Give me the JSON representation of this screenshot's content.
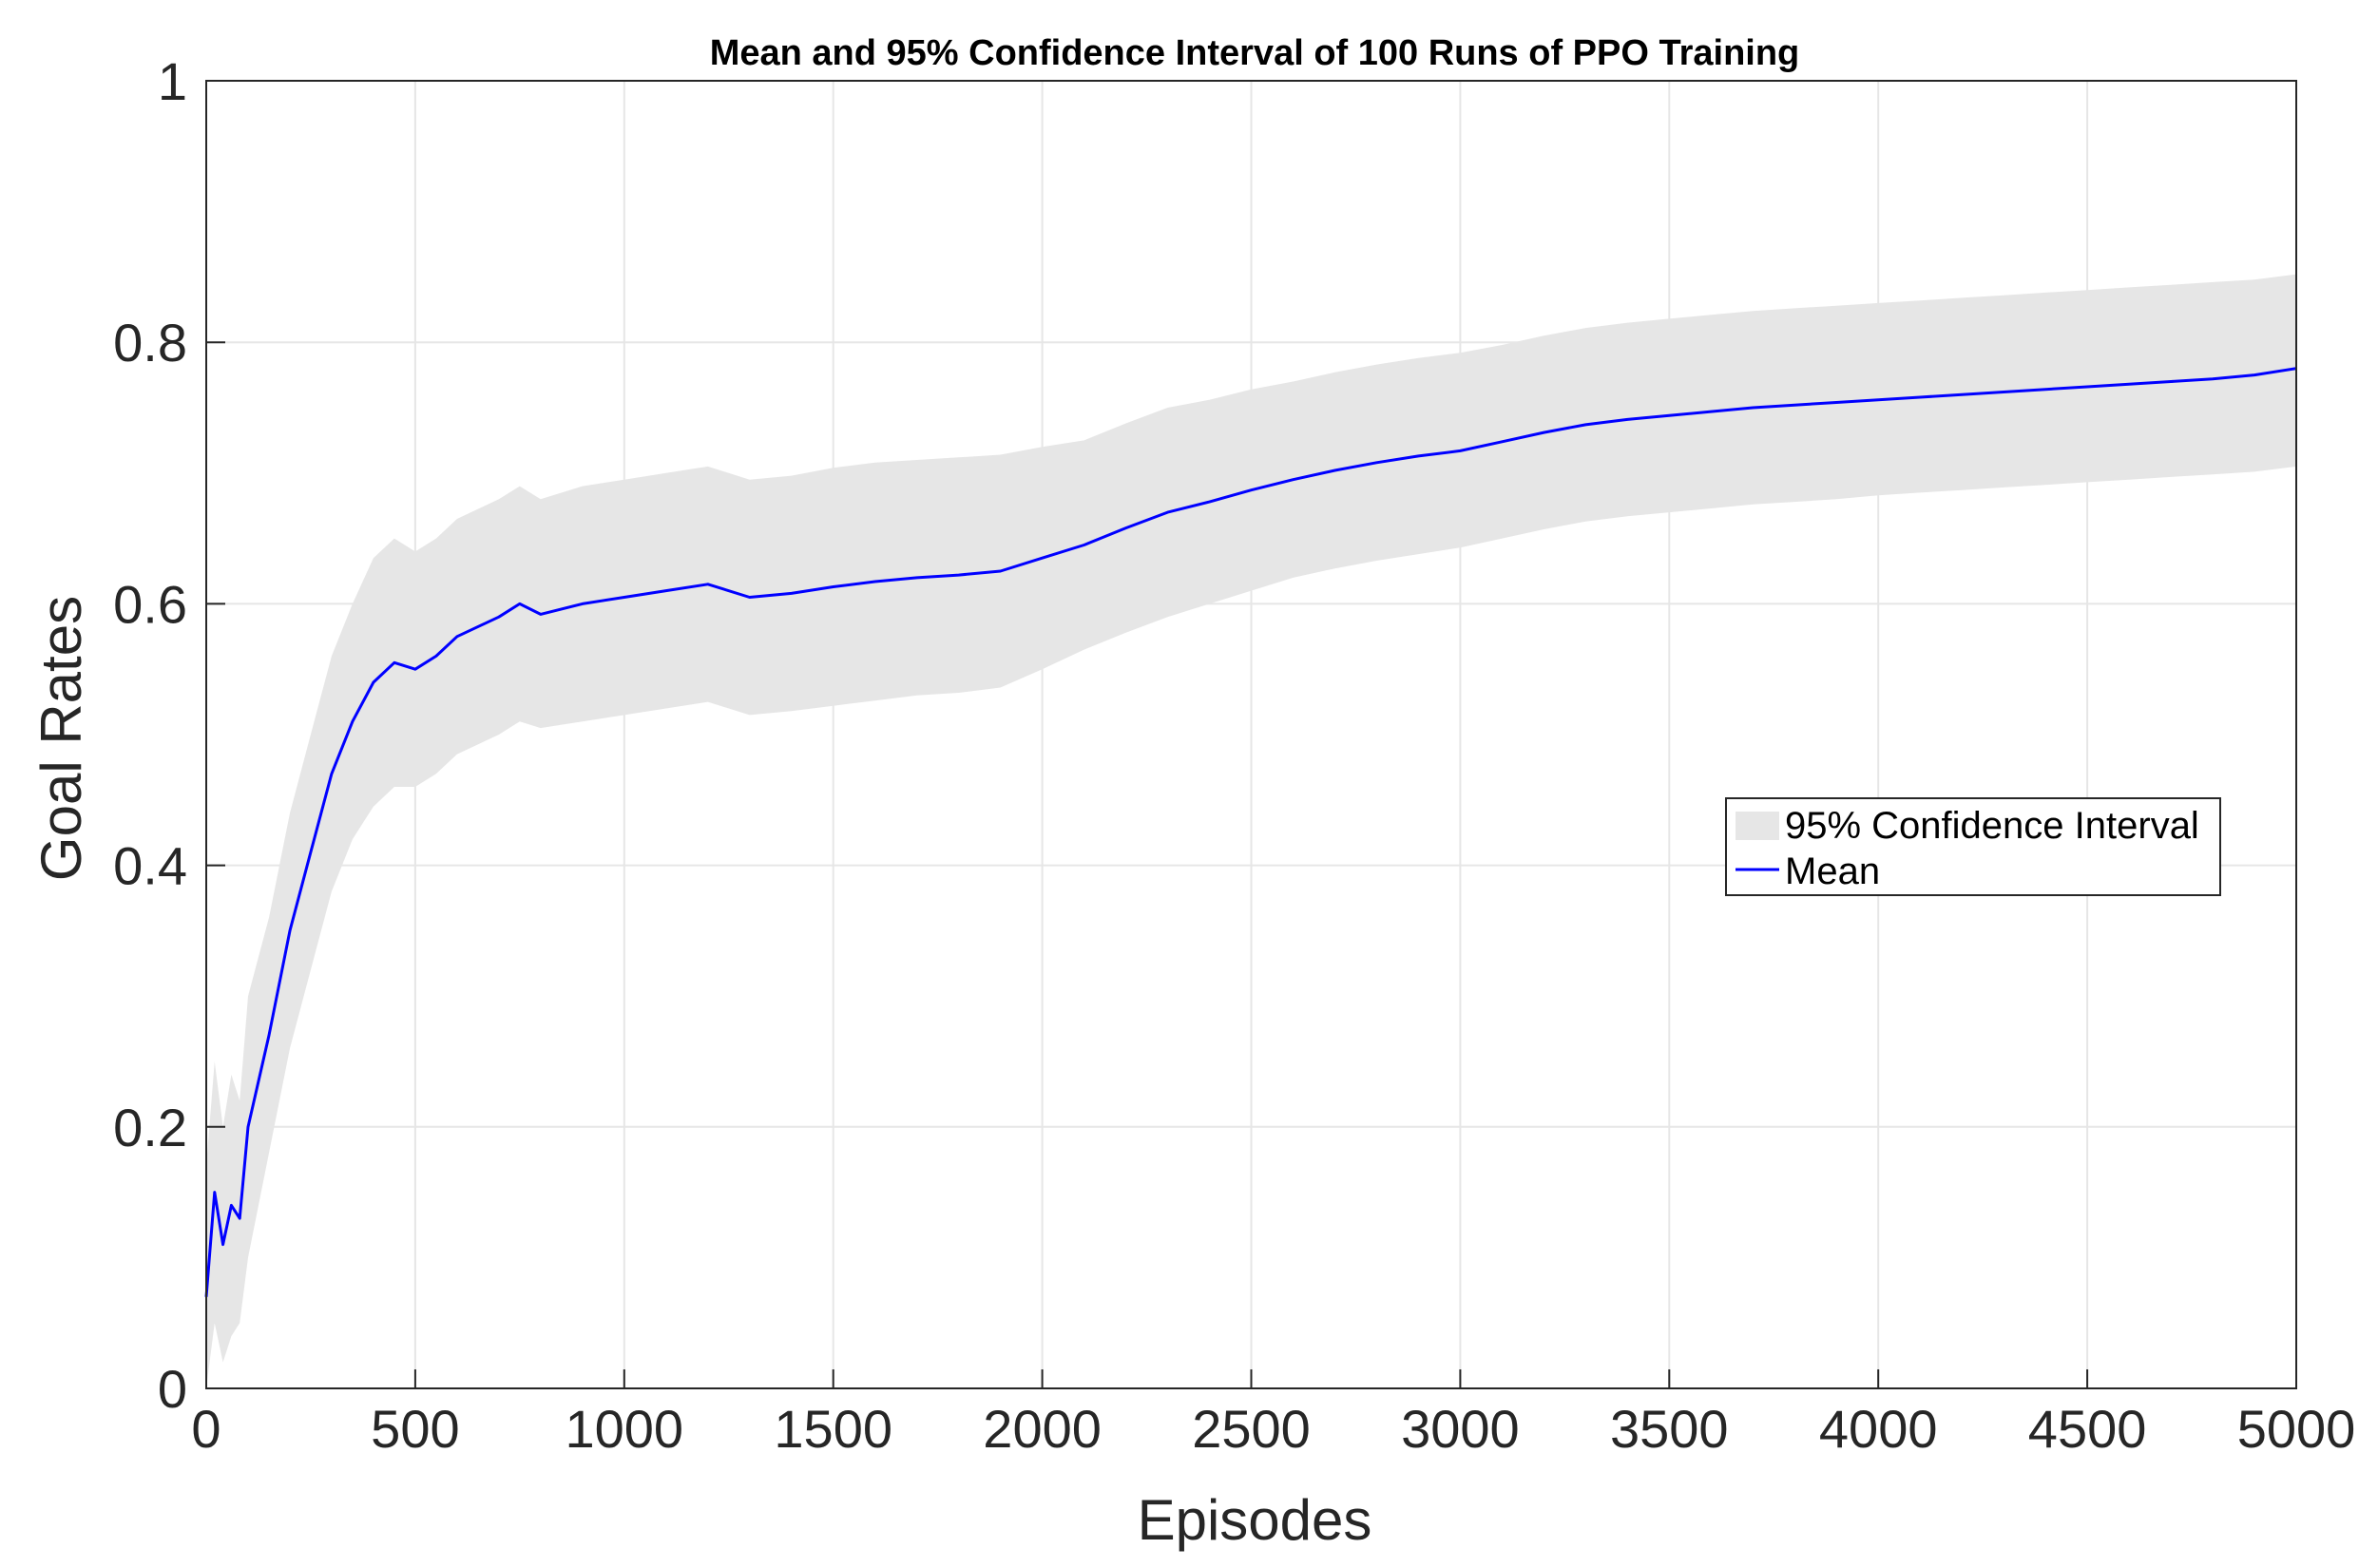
{
  "chart_data": {
    "type": "line",
    "title": "Mean and 95% Confidence Interval of 100 Runs of PPO Training",
    "xlabel": "Episodes",
    "ylabel": "Goal Rates",
    "xlim": [
      0,
      5000
    ],
    "ylim": [
      0,
      1
    ],
    "xticks": [
      0,
      500,
      1000,
      1500,
      2000,
      2500,
      3000,
      3500,
      4000,
      4500,
      5000
    ],
    "xtick_labels": [
      "0",
      "500",
      "1000",
      "1500",
      "2000",
      "2500",
      "3000",
      "3500",
      "4000",
      "4500",
      "5000"
    ],
    "yticks": [
      0,
      0.2,
      0.4,
      0.6,
      0.8,
      1
    ],
    "ytick_labels": [
      "0",
      "0.2",
      "0.4",
      "0.6",
      "0.8",
      "1"
    ],
    "grid": true,
    "legend_position": "right",
    "legend": [
      {
        "label": "95% Confidence Interval",
        "kind": "band",
        "color": "#e6e6e6"
      },
      {
        "label": "Mean",
        "kind": "line",
        "color": "#0000ff"
      }
    ],
    "series": [
      {
        "name": "Mean",
        "color": "#0000ff",
        "x": [
          0,
          20,
          40,
          60,
          80,
          100,
          150,
          200,
          250,
          300,
          350,
          400,
          450,
          500,
          550,
          600,
          700,
          750,
          800,
          900,
          1000,
          1100,
          1200,
          1300,
          1400,
          1500,
          1600,
          1700,
          1800,
          1900,
          2000,
          2100,
          2200,
          2300,
          2400,
          2500,
          2600,
          2700,
          2800,
          2900,
          3000,
          3100,
          3200,
          3300,
          3400,
          3500,
          3600,
          3700,
          3800,
          3900,
          4000,
          4100,
          4200,
          4300,
          4400,
          4500,
          4600,
          4700,
          4800,
          4900,
          5000
        ],
        "values": [
          0.07,
          0.15,
          0.11,
          0.14,
          0.13,
          0.2,
          0.27,
          0.35,
          0.41,
          0.47,
          0.51,
          0.54,
          0.555,
          0.55,
          0.56,
          0.575,
          0.59,
          0.6,
          0.592,
          0.6,
          0.605,
          0.61,
          0.615,
          0.605,
          0.608,
          0.613,
          0.617,
          0.62,
          0.622,
          0.625,
          0.635,
          0.645,
          0.658,
          0.67,
          0.678,
          0.687,
          0.695,
          0.702,
          0.708,
          0.713,
          0.717,
          0.724,
          0.731,
          0.737,
          0.741,
          0.744,
          0.747,
          0.75,
          0.752,
          0.754,
          0.756,
          0.758,
          0.76,
          0.762,
          0.764,
          0.766,
          0.768,
          0.77,
          0.772,
          0.775,
          0.78
        ]
      },
      {
        "name": "95% Confidence Interval",
        "color": "#e6e6e6",
        "x": [
          0,
          20,
          40,
          60,
          80,
          100,
          150,
          200,
          250,
          300,
          350,
          400,
          450,
          500,
          550,
          600,
          700,
          750,
          800,
          900,
          1000,
          1100,
          1200,
          1300,
          1400,
          1500,
          1600,
          1700,
          1800,
          1900,
          2000,
          2100,
          2200,
          2300,
          2400,
          2500,
          2600,
          2700,
          2800,
          2900,
          3000,
          3100,
          3200,
          3300,
          3400,
          3500,
          3600,
          3700,
          3800,
          3900,
          4000,
          4100,
          4200,
          4300,
          4400,
          4500,
          4600,
          4700,
          4800,
          4900,
          5000
        ],
        "lower": [
          0.0,
          0.05,
          0.02,
          0.04,
          0.05,
          0.1,
          0.18,
          0.26,
          0.32,
          0.38,
          0.42,
          0.445,
          0.46,
          0.46,
          0.47,
          0.485,
          0.5,
          0.51,
          0.505,
          0.51,
          0.515,
          0.52,
          0.525,
          0.515,
          0.518,
          0.522,
          0.526,
          0.53,
          0.532,
          0.536,
          0.55,
          0.565,
          0.578,
          0.59,
          0.6,
          0.61,
          0.62,
          0.627,
          0.633,
          0.638,
          0.643,
          0.65,
          0.657,
          0.663,
          0.667,
          0.67,
          0.673,
          0.676,
          0.678,
          0.68,
          0.683,
          0.685,
          0.687,
          0.689,
          0.691,
          0.693,
          0.695,
          0.697,
          0.699,
          0.701,
          0.705
        ],
        "upper": [
          0.17,
          0.25,
          0.2,
          0.24,
          0.22,
          0.3,
          0.36,
          0.44,
          0.5,
          0.56,
          0.6,
          0.635,
          0.65,
          0.64,
          0.65,
          0.665,
          0.68,
          0.69,
          0.68,
          0.69,
          0.695,
          0.7,
          0.705,
          0.695,
          0.698,
          0.704,
          0.708,
          0.71,
          0.712,
          0.714,
          0.72,
          0.725,
          0.738,
          0.75,
          0.756,
          0.764,
          0.77,
          0.777,
          0.783,
          0.788,
          0.792,
          0.798,
          0.805,
          0.811,
          0.815,
          0.818,
          0.821,
          0.824,
          0.826,
          0.828,
          0.83,
          0.832,
          0.834,
          0.836,
          0.838,
          0.84,
          0.842,
          0.844,
          0.846,
          0.848,
          0.852
        ]
      }
    ]
  }
}
